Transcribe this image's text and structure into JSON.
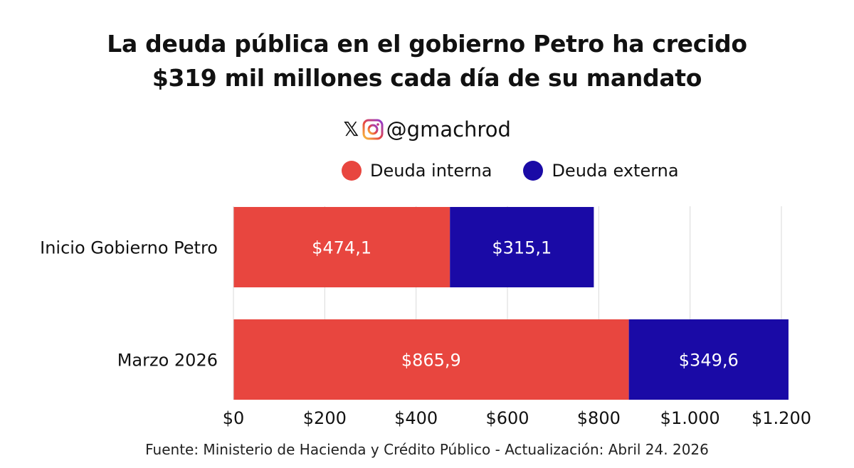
{
  "header": {
    "title_line1": "La deuda pública en el gobierno Petro ha crecido",
    "title_line2": "$319 mil millones cada día de su mandato",
    "x_glyph": "𝕏",
    "handle": "@gmachrod"
  },
  "legend": [
    {
      "label": "Deuda interna",
      "color": "#E8463F"
    },
    {
      "label": "Deuda externa",
      "color": "#1A0AA6"
    }
  ],
  "chart_data": {
    "type": "bar",
    "orientation": "horizontal",
    "stacked": true,
    "categories": [
      "Inicio Gobierno Petro",
      "Marzo 2026"
    ],
    "series": [
      {
        "name": "Deuda interna",
        "values": [
          474.1,
          865.9
        ],
        "labels": [
          "$474,1",
          "$865,9"
        ],
        "color": "#E8463F"
      },
      {
        "name": "Deuda externa",
        "values": [
          315.1,
          349.6
        ],
        "labels": [
          "$315,1",
          "$349,6"
        ],
        "color": "#1A0AA6"
      }
    ],
    "xlim": [
      0,
      1200
    ],
    "xticks": [
      0,
      200,
      400,
      600,
      800,
      1000,
      1200
    ],
    "xtick_labels": [
      "$0",
      "$200",
      "$400",
      "$600",
      "$800",
      "$1.000",
      "$1.200"
    ],
    "grid": true,
    "legend_position": "top-right"
  },
  "source": "Fuente: Ministerio de Hacienda y Crédito Público - Actualización: Abril 24. 2026"
}
